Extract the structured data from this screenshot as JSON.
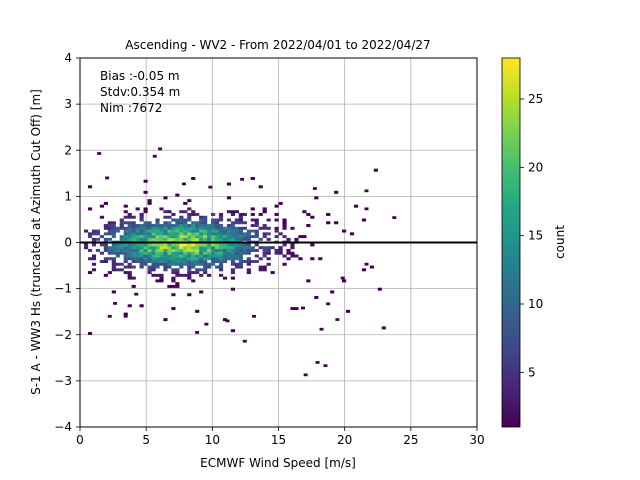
{
  "chart_data": {
    "type": "heatmap",
    "title": "Ascending - WV2 - From 2022/04/01 to 2022/04/27",
    "xlabel": "ECMWF Wind Speed [m/s]",
    "ylabel": "S-1 A - WW3 Hs (truncated at Azimuth Cut Off) [m]",
    "xlim": [
      0,
      30
    ],
    "ylim": [
      -4,
      4
    ],
    "xticks": [
      0,
      5,
      10,
      15,
      20,
      25,
      30
    ],
    "yticks": [
      -4,
      -3,
      -2,
      -1,
      0,
      1,
      2,
      3,
      4
    ],
    "grid": true,
    "reference_line_y": 0,
    "colormap": "viridis",
    "colorbar": {
      "label": "count",
      "min": 1,
      "max": 28,
      "ticks": [
        5,
        10,
        15,
        20,
        25
      ]
    },
    "stats": [
      {
        "id": "bias",
        "text": "Bias :-0.05 m"
      },
      {
        "id": "stdv",
        "text": "Stdv:0.354 m"
      },
      {
        "id": "nim",
        "text": "Nim :7672"
      }
    ],
    "distribution": {
      "center_x": 7.5,
      "center_y": -0.05,
      "spread_x": 4.0,
      "spread_y": 0.354,
      "peak_count": 28,
      "bin_width_x": 0.3,
      "bin_height_y": 0.06
    },
    "outliers": [
      [
        1.3,
        1.93
      ],
      [
        5.9,
        2.03
      ],
      [
        5.5,
        1.87
      ],
      [
        16.9,
        -2.87
      ],
      [
        18.4,
        -2.67
      ],
      [
        17.8,
        -2.6
      ],
      [
        21.5,
        1.12
      ],
      [
        23.6,
        0.54
      ],
      [
        21.5,
        0.73
      ],
      [
        21.5,
        -0.47
      ],
      [
        19.7,
        -0.77
      ],
      [
        19.3,
        -1.67
      ],
      [
        18.1,
        -1.88
      ],
      [
        12.3,
        -2.14
      ],
      [
        8.7,
        -1.95
      ],
      [
        9.4,
        -1.77
      ],
      [
        11.0,
        -1.7
      ],
      [
        13.0,
        -1.6
      ],
      [
        2.1,
        -1.6
      ],
      [
        3.3,
        -1.6
      ],
      [
        1.9,
        1.4
      ],
      [
        7.7,
        1.27
      ],
      [
        9.7,
        1.2
      ],
      [
        12.1,
        1.37
      ],
      [
        17.6,
        1.17
      ],
      [
        18.6,
        -1.33
      ],
      [
        16.7,
        -1.42
      ],
      [
        4.1,
        -1.12
      ],
      [
        2.5,
        -1.32
      ]
    ]
  }
}
